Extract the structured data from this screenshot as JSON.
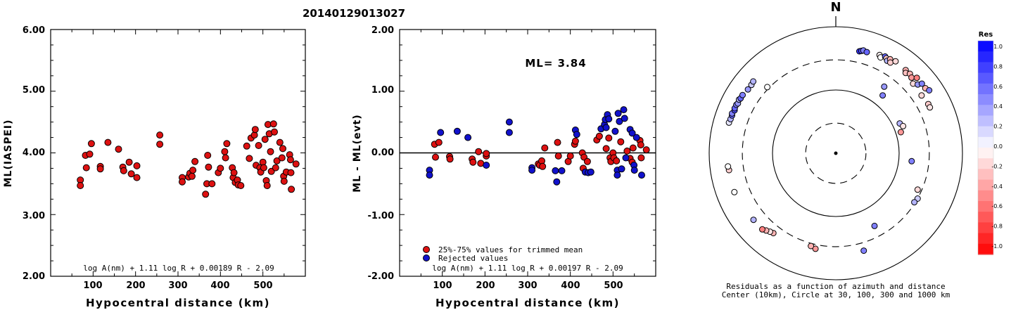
{
  "title": "20140129013027",
  "chart_data": [
    {
      "type": "scatter",
      "ylabel": "ML(IASPEI)",
      "xlabel": "Hypocentral distance (km)",
      "xlim": [
        0,
        600
      ],
      "ylim": [
        2.0,
        6.0
      ],
      "x_ticks": [
        "100",
        "200",
        "300",
        "400",
        "500"
      ],
      "y_ticks": [
        "2.00",
        "3.00",
        "4.00",
        "5.00",
        "6.00"
      ],
      "formula": "log A(nm) + 1.11 log R + 0.00189 R - 2.09",
      "colors": {
        "point": "#dd1111"
      },
      "points": [
        [
          70,
          3.56
        ],
        [
          70,
          3.47
        ],
        [
          82,
          3.96
        ],
        [
          84,
          3.76
        ],
        [
          92,
          3.98
        ],
        [
          96,
          4.15
        ],
        [
          117,
          3.78
        ],
        [
          117,
          3.74
        ],
        [
          135,
          4.17
        ],
        [
          160,
          4.06
        ],
        [
          170,
          3.77
        ],
        [
          172,
          3.71
        ],
        [
          185,
          3.85
        ],
        [
          190,
          3.66
        ],
        [
          203,
          3.79
        ],
        [
          203,
          3.6
        ],
        [
          257,
          4.29
        ],
        [
          257,
          4.14
        ],
        [
          310,
          3.6
        ],
        [
          310,
          3.53
        ],
        [
          325,
          3.61
        ],
        [
          328,
          3.67
        ],
        [
          333,
          3.62
        ],
        [
          335,
          3.72
        ],
        [
          340,
          3.86
        ],
        [
          365,
          3.33
        ],
        [
          368,
          3.5
        ],
        [
          370,
          3.96
        ],
        [
          372,
          3.77
        ],
        [
          380,
          3.5
        ],
        [
          395,
          3.68
        ],
        [
          400,
          3.75
        ],
        [
          410,
          4.02
        ],
        [
          412,
          3.92
        ],
        [
          415,
          4.15
        ],
        [
          428,
          3.76
        ],
        [
          430,
          3.6
        ],
        [
          432,
          3.68
        ],
        [
          435,
          3.52
        ],
        [
          440,
          3.56
        ],
        [
          442,
          3.48
        ],
        [
          448,
          3.47
        ],
        [
          462,
          4.11
        ],
        [
          468,
          3.91
        ],
        [
          472,
          4.24
        ],
        [
          480,
          4.29
        ],
        [
          482,
          4.38
        ],
        [
          484,
          3.8
        ],
        [
          490,
          4.12
        ],
        [
          493,
          3.76
        ],
        [
          495,
          3.69
        ],
        [
          500,
          3.85
        ],
        [
          502,
          3.76
        ],
        [
          505,
          4.22
        ],
        [
          508,
          3.55
        ],
        [
          510,
          3.47
        ],
        [
          512,
          4.46
        ],
        [
          515,
          4.31
        ],
        [
          518,
          4.02
        ],
        [
          520,
          3.7
        ],
        [
          525,
          4.47
        ],
        [
          527,
          4.34
        ],
        [
          530,
          3.76
        ],
        [
          533,
          3.87
        ],
        [
          540,
          4.17
        ],
        [
          545,
          3.92
        ],
        [
          547,
          4.07
        ],
        [
          549,
          3.62
        ],
        [
          550,
          3.54
        ],
        [
          555,
          3.69
        ],
        [
          563,
          3.97
        ],
        [
          565,
          3.89
        ],
        [
          566,
          3.68
        ],
        [
          567,
          3.41
        ],
        [
          578,
          3.82
        ]
      ]
    },
    {
      "type": "scatter",
      "ylabel": "ML - ML(evt)",
      "xlabel": "Hypocentral distance (km)",
      "xlim": [
        0,
        600
      ],
      "ylim": [
        -2.0,
        2.0
      ],
      "x_ticks": [
        "100",
        "200",
        "300",
        "400",
        "500"
      ],
      "y_ticks": [
        "-2.00",
        "-1.00",
        "0.00",
        "1.00",
        "2.00"
      ],
      "reference_line_y": 0.0,
      "annotation": "ML= 3.84",
      "formula": "log A(nm) + 1.11 log R + 0.00197 R - 2.09",
      "colors": {
        "trimmed": "#dd1111",
        "rejected": "#1111cc"
      },
      "series": [
        {
          "name": "25%-75% values for trimmed mean",
          "points": [
            [
              82,
              0.14
            ],
            [
              84,
              -0.07
            ],
            [
              92,
              0.17
            ],
            [
              117,
              -0.06
            ],
            [
              118,
              -0.1
            ],
            [
              170,
              -0.1
            ],
            [
              172,
              -0.15
            ],
            [
              185,
              0.02
            ],
            [
              190,
              -0.17
            ],
            [
              203,
              -0.05
            ],
            [
              203,
              -0.01
            ],
            [
              325,
              -0.18
            ],
            [
              328,
              -0.2
            ],
            [
              333,
              -0.13
            ],
            [
              335,
              -0.22
            ],
            [
              340,
              0.08
            ],
            [
              370,
              0.17
            ],
            [
              372,
              -0.05
            ],
            [
              395,
              -0.14
            ],
            [
              400,
              -0.05
            ],
            [
              410,
              0.14
            ],
            [
              412,
              0.19
            ],
            [
              428,
              0.0
            ],
            [
              430,
              -0.25
            ],
            [
              432,
              -0.07
            ],
            [
              440,
              -0.14
            ],
            [
              462,
              0.21
            ],
            [
              468,
              0.27
            ],
            [
              484,
              0.07
            ],
            [
              490,
              0.24
            ],
            [
              493,
              -0.08
            ],
            [
              495,
              -0.14
            ],
            [
              500,
              0.0
            ],
            [
              502,
              -0.08
            ],
            [
              508,
              -0.13
            ],
            [
              518,
              0.18
            ],
            [
              533,
              0.03
            ],
            [
              540,
              -0.09
            ],
            [
              545,
              -0.15
            ],
            [
              547,
              0.08
            ],
            [
              563,
              0.2
            ],
            [
              565,
              0.13
            ],
            [
              566,
              -0.08
            ],
            [
              578,
              0.05
            ]
          ]
        },
        {
          "name": "Rejected values",
          "points": [
            [
              70,
              -0.28
            ],
            [
              70,
              -0.36
            ],
            [
              96,
              0.33
            ],
            [
              135,
              0.35
            ],
            [
              160,
              0.25
            ],
            [
              203,
              -0.2
            ],
            [
              257,
              0.5
            ],
            [
              257,
              0.33
            ],
            [
              310,
              -0.24
            ],
            [
              310,
              -0.28
            ],
            [
              365,
              -0.29
            ],
            [
              368,
              -0.47
            ],
            [
              380,
              -0.29
            ],
            [
              412,
              0.37
            ],
            [
              415,
              0.3
            ],
            [
              435,
              -0.31
            ],
            [
              442,
              -0.32
            ],
            [
              448,
              -0.31
            ],
            [
              472,
              0.39
            ],
            [
              480,
              0.46
            ],
            [
              482,
              0.54
            ],
            [
              484,
              0.41
            ],
            [
              487,
              0.62
            ],
            [
              490,
              0.55
            ],
            [
              505,
              0.35
            ],
            [
              510,
              -0.28
            ],
            [
              510,
              -0.36
            ],
            [
              512,
              0.64
            ],
            [
              515,
              0.51
            ],
            [
              520,
              -0.26
            ],
            [
              525,
              0.7
            ],
            [
              527,
              0.56
            ],
            [
              530,
              -0.08
            ],
            [
              540,
              0.38
            ],
            [
              545,
              0.32
            ],
            [
              549,
              -0.2
            ],
            [
              550,
              -0.28
            ],
            [
              555,
              0.25
            ],
            [
              567,
              -0.36
            ]
          ]
        }
      ]
    },
    {
      "type": "polar",
      "north_label": "N",
      "caption_line1": "Residuals as a function of azimuth and distance",
      "caption_line2": "Center (10km), Circle at 30, 100, 300 and 1000 km",
      "rings_km": [
        30,
        100,
        300,
        1000
      ],
      "dashed_rings_km": [
        30,
        300
      ],
      "colorbar": {
        "title": "Res",
        "tick_labels": [
          "1.0",
          "0.8",
          "0.6",
          "0.4",
          "0.2",
          "0.0",
          "-0.2",
          "-0.4",
          "-0.6",
          "-0.8",
          "-1.0"
        ],
        "min": -1.0,
        "max": 1.0,
        "colors": {
          "positive": "#0000ff",
          "zero": "#ffffff",
          "negative": "#ff0000"
        }
      },
      "stations": [
        {
          "az": 13,
          "dist_km": 450,
          "res": 0.8
        },
        {
          "az": 14,
          "dist_km": 465,
          "res": 0.7
        },
        {
          "az": 15,
          "dist_km": 480,
          "res": 0.5
        },
        {
          "az": 17,
          "dist_km": 470,
          "res": 0.6
        },
        {
          "az": 24,
          "dist_km": 500,
          "res": -0.05
        },
        {
          "az": 25,
          "dist_km": 470,
          "res": 0.0
        },
        {
          "az": 27,
          "dist_km": 520,
          "res": 0.6
        },
        {
          "az": 28,
          "dist_km": 500,
          "res": -0.2
        },
        {
          "az": 29,
          "dist_km": 470,
          "res": 0.3
        },
        {
          "az": 30,
          "dist_km": 520,
          "res": -0.3
        },
        {
          "az": 31,
          "dist_km": 470,
          "res": -0.2
        },
        {
          "az": 33,
          "dist_km": 540,
          "res": -0.15
        },
        {
          "az": 36,
          "dist_km": 200,
          "res": 0.4
        },
        {
          "az": 39,
          "dist_km": 150,
          "res": 0.5
        },
        {
          "az": 40,
          "dist_km": 520,
          "res": -0.3
        },
        {
          "az": 41,
          "dist_km": 480,
          "res": -0.25
        },
        {
          "az": 43,
          "dist_km": 520,
          "res": -0.3
        },
        {
          "az": 45,
          "dist_km": 490,
          "res": -0.4
        },
        {
          "az": 47,
          "dist_km": 560,
          "res": -0.5
        },
        {
          "az": 48,
          "dist_km": 440,
          "res": -0.15
        },
        {
          "az": 50,
          "dist_km": 490,
          "res": 0.4
        },
        {
          "az": 51,
          "dist_km": 560,
          "res": 0.5
        },
        {
          "az": 54,
          "dist_km": 560,
          "res": -0.3
        },
        {
          "az": 56,
          "dist_km": 600,
          "res": 0.5
        },
        {
          "az": 56,
          "dist_km": 430,
          "res": -0.15
        },
        {
          "az": 62,
          "dist_km": 450,
          "res": -0.2
        },
        {
          "az": 64,
          "dist_km": 450,
          "res": -0.1
        },
        {
          "az": 65,
          "dist_km": 130,
          "res": 0.3
        },
        {
          "az": 68,
          "dist_km": 140,
          "res": -0.1
        },
        {
          "az": 72,
          "dist_km": 120,
          "res": -0.4
        },
        {
          "az": 96,
          "dist_km": 160,
          "res": 0.5
        },
        {
          "az": 114,
          "dist_km": 260,
          "res": -0.15
        },
        {
          "az": 119,
          "dist_km": 300,
          "res": 0.2
        },
        {
          "az": 122,
          "dist_km": 290,
          "res": 0.3
        },
        {
          "az": 152,
          "dist_km": 200,
          "res": 0.5
        },
        {
          "az": 164,
          "dist_km": 400,
          "res": 0.5
        },
        {
          "az": 192,
          "dist_km": 350,
          "res": -0.4
        },
        {
          "az": 195,
          "dist_km": 330,
          "res": -0.3
        },
        {
          "az": 218,
          "dist_km": 400,
          "res": -0.3
        },
        {
          "az": 220,
          "dist_km": 415,
          "res": -0.1
        },
        {
          "az": 222,
          "dist_km": 440,
          "res": -0.3
        },
        {
          "az": 224,
          "dist_km": 470,
          "res": -0.5
        },
        {
          "az": 231,
          "dist_km": 470,
          "res": 0.3
        },
        {
          "az": 249,
          "dist_km": 520,
          "res": 0.0
        },
        {
          "az": 261,
          "dist_km": 510,
          "res": -0.2
        },
        {
          "az": 263,
          "dist_km": 520,
          "res": 0.0
        },
        {
          "az": 286,
          "dist_km": 570,
          "res": 0.1
        },
        {
          "az": 288,
          "dist_km": 560,
          "res": 0.3
        },
        {
          "az": 290,
          "dist_km": 555,
          "res": 0.6
        },
        {
          "az": 291,
          "dist_km": 570,
          "res": 0.5
        },
        {
          "az": 293,
          "dist_km": 545,
          "res": 0.7
        },
        {
          "az": 294,
          "dist_km": 560,
          "res": 0.6
        },
        {
          "az": 296,
          "dist_km": 560,
          "res": 0.5
        },
        {
          "az": 297,
          "dist_km": 545,
          "res": 0.4
        },
        {
          "az": 299,
          "dist_km": 560,
          "res": 0.3
        },
        {
          "az": 300,
          "dist_km": 545,
          "res": 0.6
        },
        {
          "az": 302,
          "dist_km": 545,
          "res": 0.5
        },
        {
          "az": 306,
          "dist_km": 520,
          "res": 0.4
        },
        {
          "az": 309,
          "dist_km": 520,
          "res": 0.2
        },
        {
          "az": 311,
          "dist_km": 535,
          "res": 0.3
        },
        {
          "az": 314,
          "dist_km": 320,
          "res": 0.0
        }
      ]
    }
  ]
}
